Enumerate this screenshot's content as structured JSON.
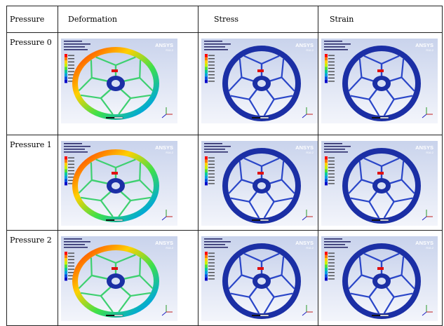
{
  "table": {
    "headers": [
      "Pressure",
      "Deformation",
      "Stress",
      "Strain"
    ],
    "rows": [
      {
        "label": "Pressure 0"
      },
      {
        "label": "Pressure 1"
      },
      {
        "label": "Pressure 2"
      }
    ]
  },
  "figure_text": {
    "brand": "ANSYS",
    "version": "R16.2"
  },
  "colors": {
    "background_gradient": [
      "#c9d3ec",
      "#f3f5fb"
    ],
    "rim_blue": "#1b2fa5",
    "legend": [
      "#ff0000",
      "#ff7a00",
      "#ffd200",
      "#c8f000",
      "#4fe03a",
      "#00c8a0",
      "#00a0e0",
      "#0050e0",
      "#0000c8"
    ]
  }
}
